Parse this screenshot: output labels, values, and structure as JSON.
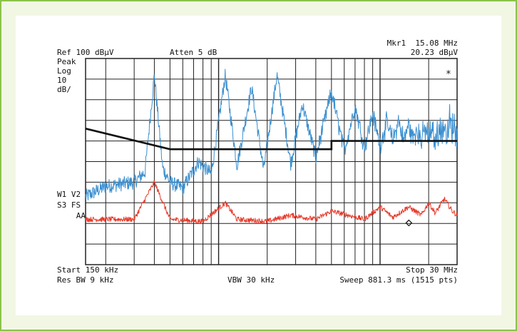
{
  "header": {
    "ref_level": "Ref 100 dBµV",
    "atten": "Atten 5 dB",
    "marker_name": "Mkr1  15.08 MHz",
    "marker_level": "20.23 dBµV"
  },
  "left_panel": {
    "detector": "Peak",
    "scale_type": "Log",
    "scale_value": "10",
    "scale_unit": "dB/",
    "trace_line1": "W1 V2",
    "trace_line2": "S3 FS",
    "trace_line3": "AA",
    "asterisk": "*"
  },
  "footer": {
    "start": "Start 150 kHz",
    "stop": "Stop 30 MHz",
    "res_bw": "Res BW 9 kHz",
    "vbw": "VBW 30 kHz",
    "sweep": "Sweep 881.3 ms (1515 pts)"
  },
  "colors": {
    "frame": "#8bc34a",
    "background": "#f2f7e4",
    "peak_trace": "#3a8fd0",
    "average_trace": "#e83a2a",
    "limit_line": "#111111",
    "grid": "#222222"
  },
  "chart_data": {
    "type": "line",
    "title": "",
    "xlabel": "",
    "ylabel": "",
    "xscale": "log",
    "xlim_mhz": [
      0.15,
      30
    ],
    "ylim_dbuv": [
      0,
      100
    ],
    "grid": true,
    "series": [
      {
        "role": "peak",
        "color": "#3a8fd0",
        "x_mhz": [
          0.15,
          0.2,
          0.3,
          0.35,
          0.4,
          0.45,
          0.5,
          0.6,
          0.75,
          0.9,
          1.1,
          1.3,
          1.6,
          1.9,
          2.3,
          2.8,
          3.3,
          4,
          5,
          6,
          7,
          8,
          9,
          10,
          11,
          12,
          13,
          14,
          15,
          16,
          17,
          18,
          19,
          20,
          21,
          22,
          23,
          24,
          25,
          26,
          27,
          28,
          29,
          30
        ],
        "y_dbuv": [
          33,
          38,
          40,
          45,
          92,
          47,
          40,
          37,
          50,
          44,
          92,
          48,
          86,
          46,
          92,
          49,
          78,
          52,
          84,
          55,
          77,
          57,
          73,
          58,
          69,
          60,
          70,
          60,
          68,
          61,
          66,
          60,
          66,
          62,
          65,
          60,
          66,
          64,
          68,
          62,
          70,
          65,
          67,
          66
        ]
      },
      {
        "role": "average",
        "color": "#e83a2a",
        "x_mhz": [
          0.15,
          0.3,
          0.4,
          0.5,
          0.8,
          1.1,
          1.3,
          2,
          2.8,
          4,
          5,
          8,
          10,
          12,
          15,
          18,
          20,
          22,
          25,
          28,
          30
        ],
        "y_dbuv": [
          22,
          22,
          40,
          22,
          21,
          30,
          22,
          21,
          24,
          22,
          26,
          22,
          28,
          23,
          28,
          24,
          30,
          25,
          32,
          26,
          24
        ]
      },
      {
        "role": "limit",
        "color": "#111111",
        "x_mhz": [
          0.15,
          0.5,
          5,
          5,
          30
        ],
        "y_dbuv": [
          66,
          56,
          56,
          60,
          60
        ]
      }
    ],
    "marker": {
      "x_mhz": 15.08,
      "y_dbuv": 20.23
    }
  }
}
